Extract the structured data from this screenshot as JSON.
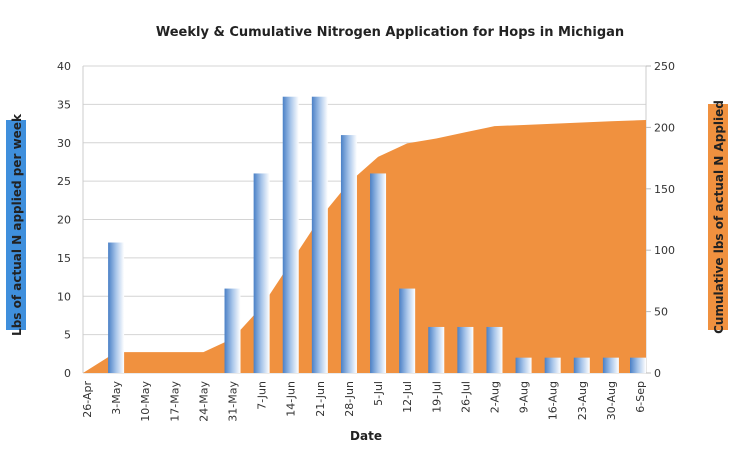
{
  "chart_data": {
    "type": "bar+area",
    "title": "Weekly & Cumulative Nitrogen Application for Hops in Michigan",
    "xlabel": "Date",
    "ylabel": "Lbs of actual N applied per week",
    "y2label": "Cumulative lbs of actual N Applied",
    "categories": [
      "26-Apr",
      "3-May",
      "10-May",
      "17-May",
      "24-May",
      "31-May",
      "7-Jun",
      "14-Jun",
      "21-Jun",
      "28-Jun",
      "5-Jul",
      "12-Jul",
      "19-Jul",
      "26-Jul",
      "2-Aug",
      "9-Aug",
      "16-Aug",
      "23-Aug",
      "30-Aug",
      "6-Sep"
    ],
    "series": [
      {
        "type": "bar",
        "axis": "left",
        "color": "#5b8fd0",
        "values": [
          0,
          17,
          0,
          0,
          0,
          11,
          26,
          36,
          36,
          31,
          26,
          11,
          6,
          6,
          6,
          2,
          2,
          2,
          2,
          2
        ]
      },
      {
        "type": "area",
        "axis": "right",
        "color": "#f0913f",
        "values": [
          0,
          17,
          17,
          17,
          17,
          28,
          54,
          90,
          126,
          155,
          176,
          187,
          191,
          196,
          201,
          202,
          203,
          204,
          205,
          206
        ]
      }
    ],
    "ylim": [
      0,
      40
    ],
    "yticks": [
      0,
      5,
      10,
      15,
      20,
      25,
      30,
      35,
      40
    ],
    "y2lim": [
      0,
      250
    ],
    "y2ticks": [
      0,
      50,
      100,
      150,
      200,
      250
    ],
    "grid": true,
    "ylabel_bg": "#3f8fdc",
    "y2label_bg": "#f0913f"
  }
}
